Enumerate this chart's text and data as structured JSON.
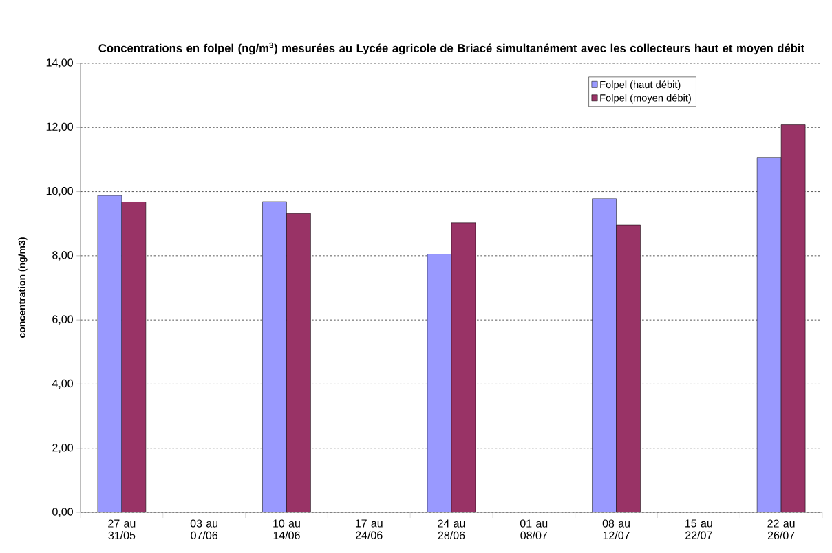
{
  "chart_data": {
    "type": "bar",
    "title": "Concentrations en folpel (ng/m$^{3}$) mesurées au Lycée agricole de Briacé simultanément avec les collecteurs haut et moyen débit",
    "ylabel": "concentration (ng/m3)",
    "categories": [
      "27 au 31/05",
      "03 au 07/06",
      "10 au 14/06",
      "17 au 24/06",
      "24 au 28/06",
      "01 au 08/07",
      "08 au 12/07",
      "15 au 22/07",
      "22 au 26/07"
    ],
    "series": [
      {
        "name": "Folpel (haut débit)",
        "color": "#9999ff",
        "values": [
          9.88,
          0,
          9.69,
          0,
          8.05,
          0,
          9.78,
          0,
          11.07
        ]
      },
      {
        "name": "Folpel (moyen débit)",
        "color": "#993366",
        "values": [
          9.68,
          0,
          9.32,
          0,
          9.03,
          0,
          8.96,
          0,
          12.08
        ]
      }
    ],
    "ylim": [
      0,
      14
    ],
    "yticks": [
      {
        "value": 0,
        "label": "0,00"
      },
      {
        "value": 2,
        "label": "2,00"
      },
      {
        "value": 4,
        "label": "4,00"
      },
      {
        "value": 6,
        "label": "6,00"
      },
      {
        "value": 8,
        "label": "8,00"
      },
      {
        "value": 10,
        "label": "10,00"
      },
      {
        "value": 12,
        "label": "12,00"
      },
      {
        "value": 14,
        "label": "14,00"
      }
    ],
    "grid": "y",
    "legend": "top right"
  }
}
